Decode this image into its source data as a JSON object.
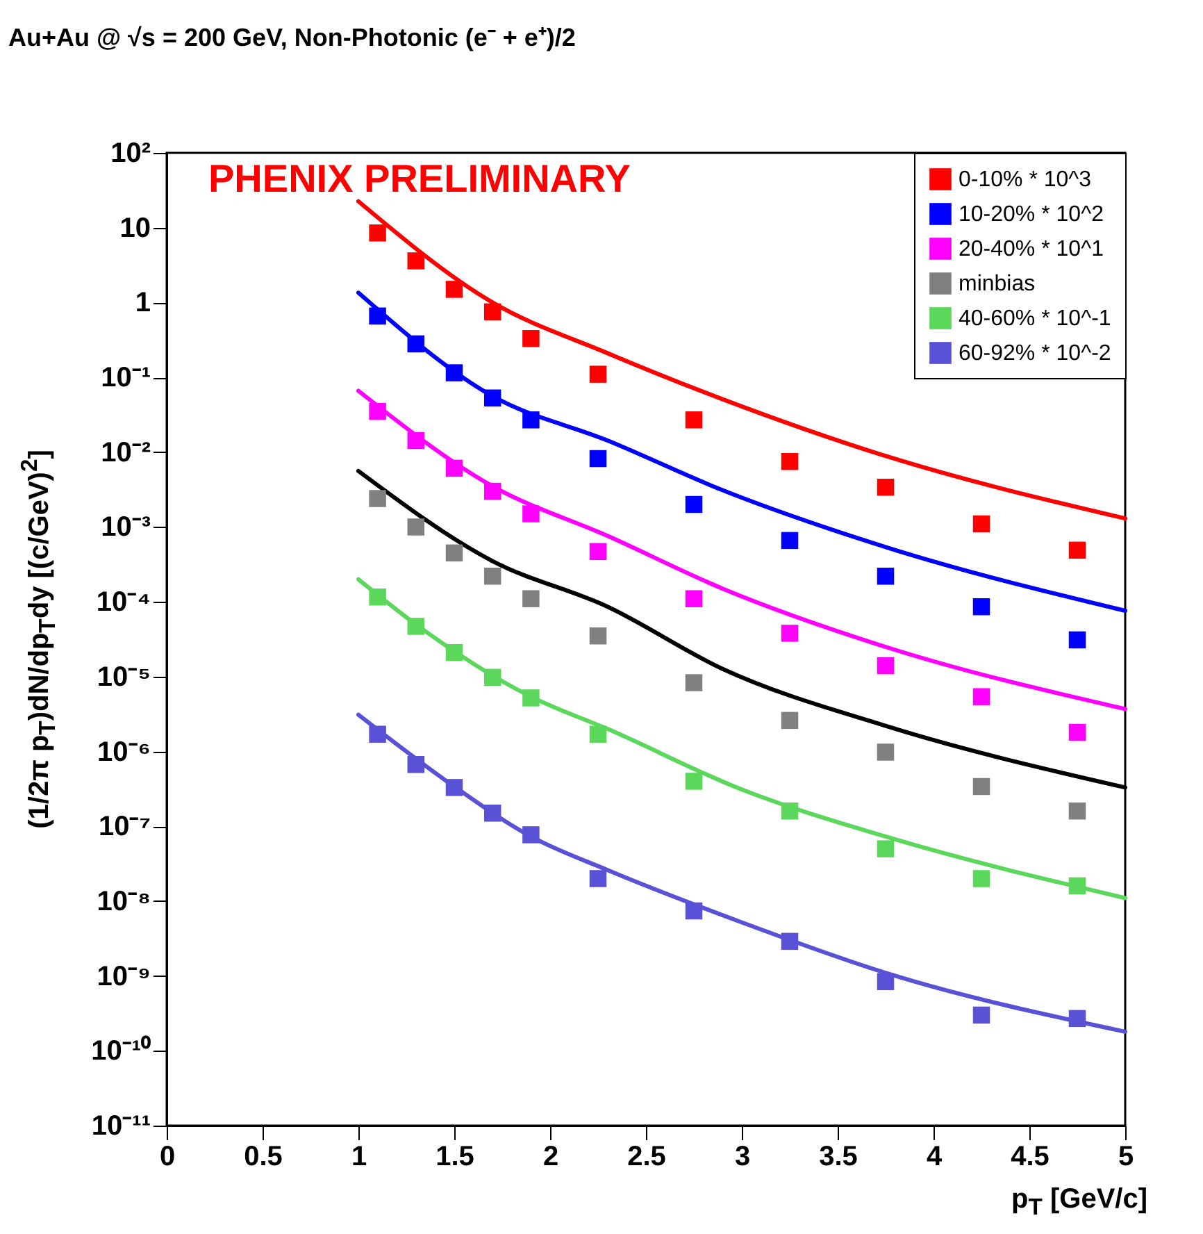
{
  "chart_data": {
    "type": "scatter",
    "title": "Au+Au @ √s = 200 GeV, Non-Photonic (e⁻ + e⁺)/2",
    "xlabel": "p$_{T}$ [GeV/c]",
    "ylabel": "(1/2π p$_{T}$)dN/dp$_{T}$dy [(c/GeV)$^{2}$]",
    "annotations": [
      "PHENIX PRELIMINARY"
    ],
    "x": [
      1.1,
      1.3,
      1.5,
      1.7,
      1.9,
      2.25,
      2.75,
      3.25,
      3.75,
      4.25,
      4.75
    ],
    "series": [
      {
        "name": "0-10% * 10^3",
        "color": "#ff0000",
        "marker": "square",
        "values": [
          8.5,
          3.6,
          1.5,
          0.75,
          0.33,
          0.11,
          0.027,
          0.0075,
          0.0034,
          0.0011,
          0.00049
        ]
      },
      {
        "name": "10-20% * 10^2",
        "color": "#0000ff",
        "marker": "square",
        "values": [
          0.66,
          0.28,
          0.115,
          0.053,
          0.027,
          0.0082,
          0.002,
          0.00066,
          0.00022,
          8.6e-05,
          3.1e-05
        ]
      },
      {
        "name": "20-40% * 10^1",
        "color": "#ff00ff",
        "marker": "square",
        "values": [
          0.035,
          0.0143,
          0.0061,
          0.003,
          0.0015,
          0.00047,
          0.00011,
          3.8e-05,
          1.4e-05,
          5.4e-06,
          1.8e-06
        ]
      },
      {
        "name": "minbias",
        "color": "#808080",
        "marker": "square",
        "values": [
          0.0024,
          0.001,
          0.00045,
          0.00022,
          0.00011,
          3.5e-05,
          8.3e-06,
          2.6e-06,
          9.8e-07,
          3.4e-07,
          1.6e-07
        ]
      },
      {
        "name": "40-60% * 10^-1",
        "color": "#5bd75b",
        "marker": "square",
        "values": [
          0.000116,
          4.7e-05,
          2.1e-05,
          9.8e-06,
          5.2e-06,
          1.7e-06,
          4e-07,
          1.6e-07,
          5e-08,
          2e-08,
          1.6e-08
        ]
      },
      {
        "name": "60-92% * 10^-2",
        "color": "#5a52d6",
        "marker": "square",
        "values": [
          1.7e-06,
          6.7e-07,
          3.3e-07,
          1.5e-07,
          7.7e-08,
          2e-08,
          7.4e-09,
          2.9e-09,
          8.4e-10,
          3e-10,
          2.7e-10
        ]
      },
      {
        "type": "line",
        "color": "#ff0000",
        "x": [
          1,
          1.7,
          2.3,
          2.9,
          3.75,
          5
        ],
        "values": [
          22.5,
          1.0,
          0.21,
          0.051,
          0.0089,
          0.0013
        ]
      },
      {
        "type": "line",
        "color": "#0000ff",
        "x": [
          1,
          1.7,
          2.3,
          2.9,
          3.75,
          5
        ],
        "values": [
          1.35,
          0.056,
          0.0143,
          0.0031,
          0.00054,
          7.6e-05
        ]
      },
      {
        "type": "line",
        "color": "#ff00ff",
        "x": [
          1,
          1.7,
          2.3,
          2.9,
          3.75,
          5
        ],
        "values": [
          0.066,
          0.0035,
          0.00076,
          0.00015,
          2.5e-05,
          3.7e-06
        ]
      },
      {
        "type": "line",
        "color": "#000000",
        "x": [
          1,
          1.7,
          2.3,
          2.9,
          3.75,
          5
        ],
        "values": [
          0.0056,
          0.00035,
          8.6e-05,
          1.27e-05,
          2.2e-06,
          3.3e-07
        ]
      },
      {
        "type": "line",
        "color": "#5bd75b",
        "x": [
          1,
          1.3,
          1.9,
          2.3,
          3,
          3.75,
          5
        ],
        "values": [
          0.0002,
          5e-05,
          5.4e-06,
          2e-06,
          3.1e-07,
          7.3e-08,
          1.1e-08
        ]
      },
      {
        "type": "line",
        "color": "#5a52d6",
        "x": [
          1,
          1.5,
          1.9,
          2.3,
          3,
          3.75,
          5
        ],
        "values": [
          3.1e-06,
          3.4e-07,
          7.3e-08,
          2.6e-08,
          5.2e-09,
          1.1e-09,
          1.8e-10
        ]
      }
    ],
    "xlim": [
      0,
      5
    ],
    "xticks": [
      0,
      0.5,
      1,
      1.5,
      2,
      2.5,
      3,
      3.5,
      4,
      4.5,
      5
    ],
    "ylim": [
      1e-11,
      100
    ],
    "yticks": [
      {
        "value": 1e-11,
        "label": "10⁻¹¹"
      },
      {
        "value": 1e-10,
        "label": "10⁻¹⁰"
      },
      {
        "value": 1e-09,
        "label": "10⁻⁹"
      },
      {
        "value": 1e-08,
        "label": "10⁻⁸"
      },
      {
        "value": 1e-07,
        "label": "10⁻⁷"
      },
      {
        "value": 1e-06,
        "label": "10⁻⁶"
      },
      {
        "value": 1e-05,
        "label": "10⁻⁵"
      },
      {
        "value": 0.0001,
        "label": "10⁻⁴"
      },
      {
        "value": 0.001,
        "label": "10⁻³"
      },
      {
        "value": 0.01,
        "label": "10⁻²"
      },
      {
        "value": 0.1,
        "label": "10⁻¹"
      },
      1,
      10,
      {
        "value": 100,
        "label": "10²"
      }
    ],
    "log": "y",
    "grid": false,
    "legend": "top right",
    "line_style": "solid"
  }
}
